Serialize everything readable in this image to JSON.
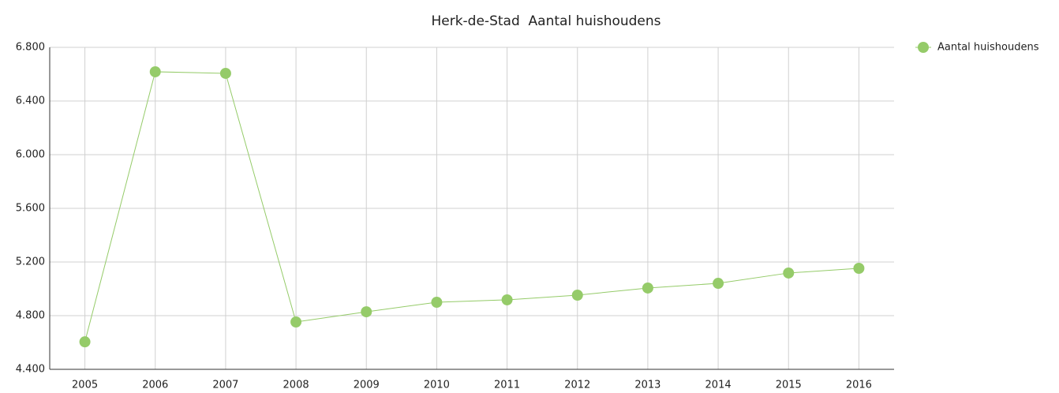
{
  "chart_data": {
    "type": "line",
    "title": "Herk-de-Stad  Aantal huishoudens",
    "categories": [
      "2005",
      "2006",
      "2007",
      "2008",
      "2009",
      "2010",
      "2011",
      "2012",
      "2013",
      "2014",
      "2015",
      "2016"
    ],
    "series": [
      {
        "name": "Aantal huishoudens",
        "color": "#95cb69",
        "values": [
          4605,
          6618,
          6606,
          4753,
          4829,
          4900,
          4918,
          4953,
          5006,
          5041,
          5118,
          5153
        ]
      }
    ],
    "ylim": [
      4400,
      6800
    ],
    "yticks": [
      {
        "value": 4400,
        "label": "4.400"
      },
      {
        "value": 4800,
        "label": "4.800"
      },
      {
        "value": 5200,
        "label": "5.200"
      },
      {
        "value": 5600,
        "label": "5.600"
      },
      {
        "value": 6000,
        "label": "6.000"
      },
      {
        "value": 6400,
        "label": "6.400"
      },
      {
        "value": 6800,
        "label": "6.800"
      }
    ],
    "grid": true,
    "legend": "top-right"
  }
}
